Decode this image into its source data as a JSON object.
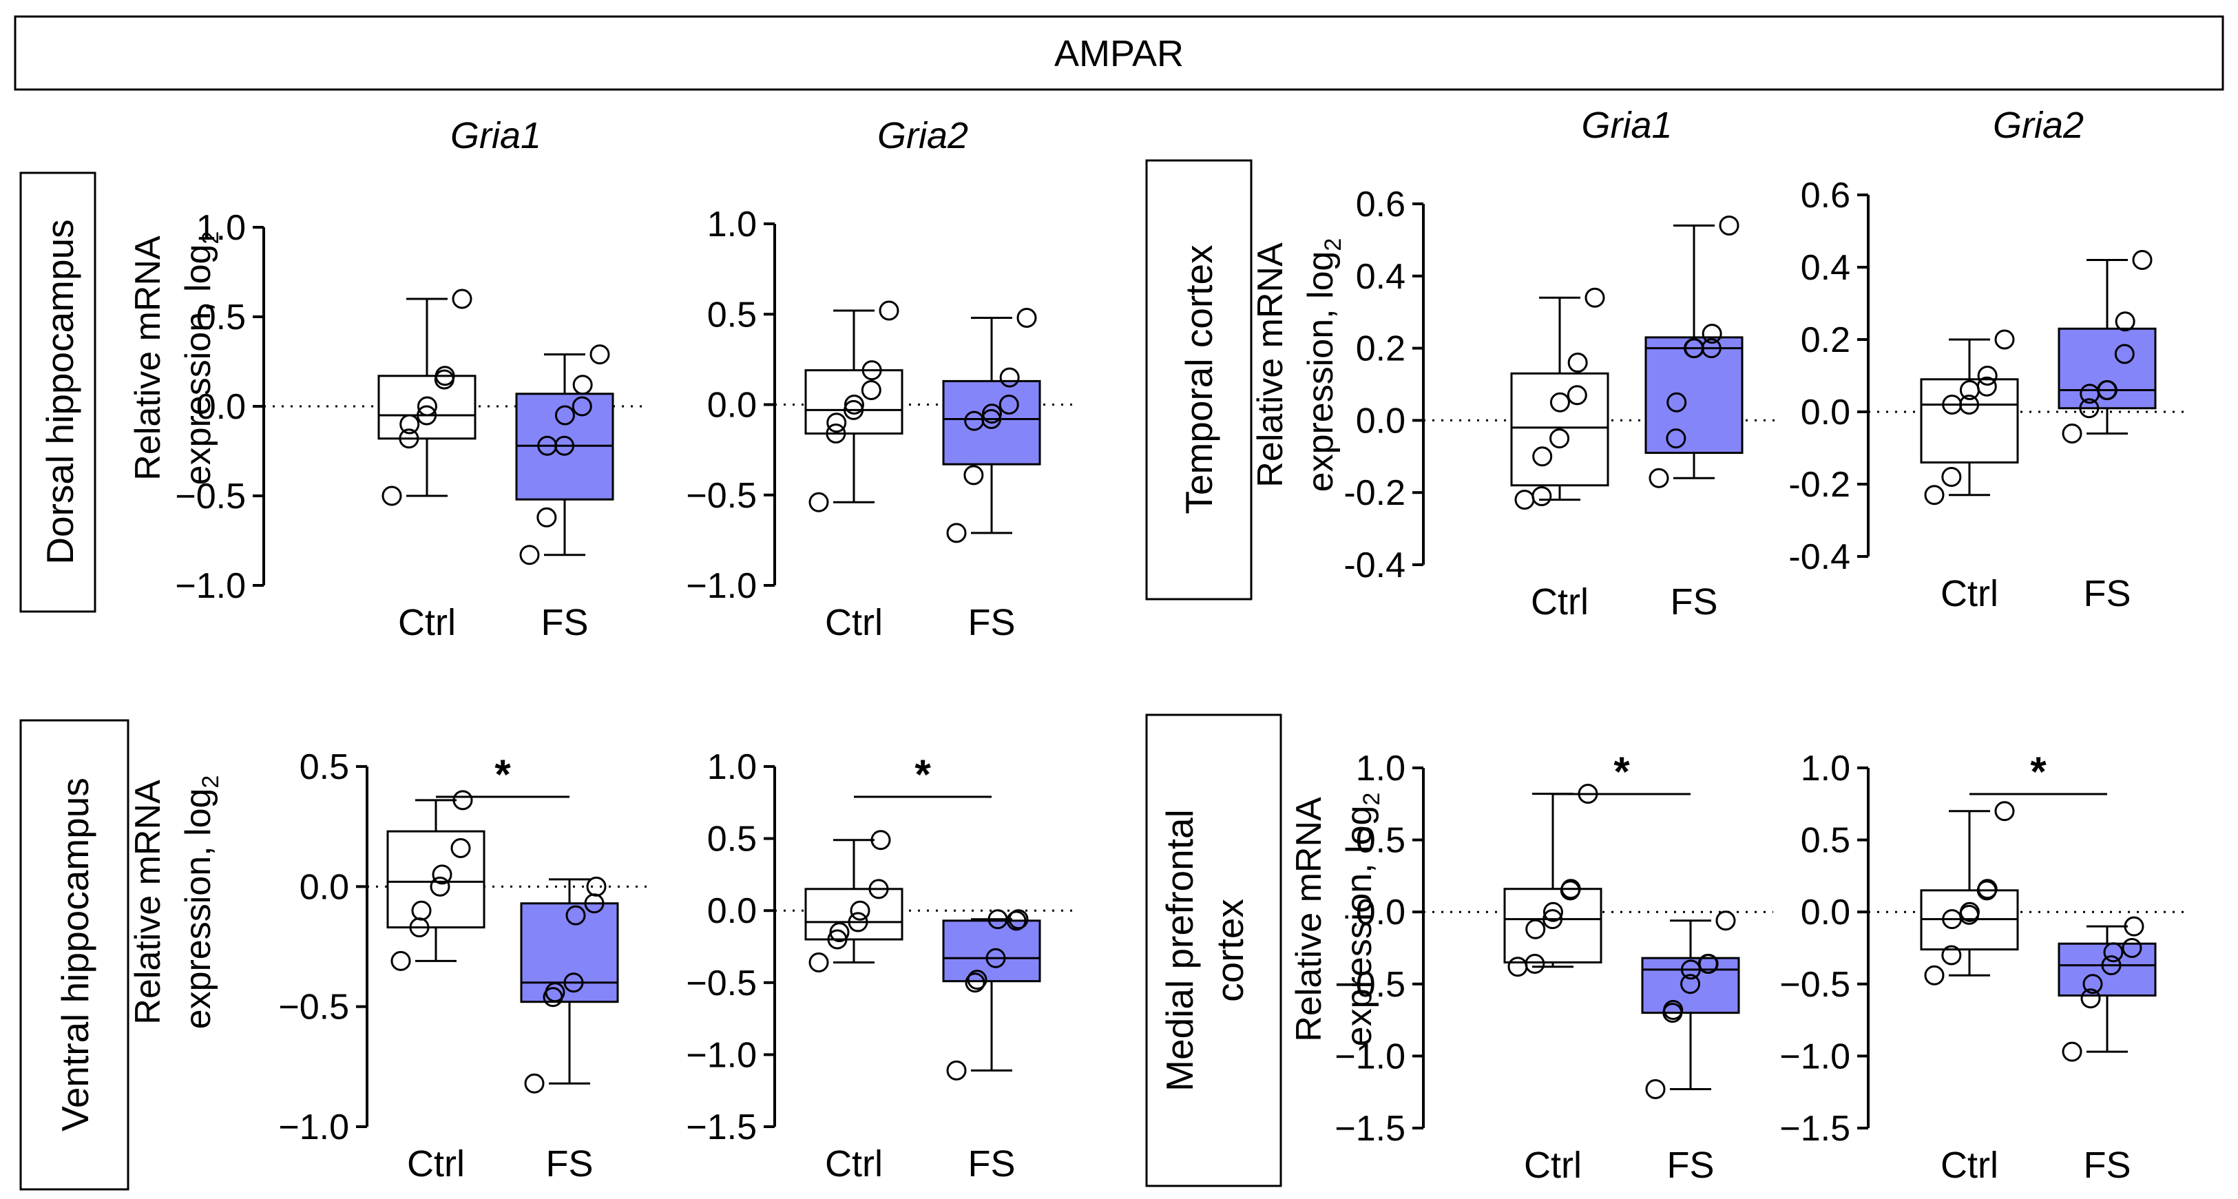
{
  "header": {
    "title": "AMPAR"
  },
  "colors": {
    "ctrl_fill": "#ffffff",
    "fs_fill": "#8585fa",
    "stroke": "#000000"
  },
  "regions": {
    "dorsal": "Dorsal hippocampus",
    "ventral": "Ventral hippocampus",
    "temporal": "Temporal cortex",
    "medial_line1": "Medial prefrontal",
    "medial_line2": "cortex"
  },
  "ylabel": {
    "line1": "Relative mRNA",
    "line2": "expression, log",
    "sub": "2"
  },
  "chart_data": [
    {
      "id": "dh-gria1",
      "type": "box",
      "title": "Gria1",
      "region": "Dorsal hippocampus",
      "categories": [
        "Ctrl",
        "FS"
      ],
      "ylim": [
        -1.0,
        1.0
      ],
      "ticks": [
        -1.0,
        -0.5,
        0.0,
        0.5,
        1.0
      ],
      "tick_labels": [
        "−1.0",
        "−0.5",
        "0.0",
        "0.5",
        "1.0"
      ],
      "significance": "",
      "series": [
        {
          "name": "Ctrl",
          "min": -0.5,
          "q1": -0.18,
          "median": -0.05,
          "q3": 0.17,
          "max": 0.6,
          "points": [
            -0.5,
            -0.18,
            -0.1,
            -0.05,
            0.0,
            0.15,
            0.17,
            0.6
          ]
        },
        {
          "name": "FS",
          "min": -0.83,
          "q1": -0.52,
          "median": -0.22,
          "q3": 0.07,
          "max": 0.29,
          "points": [
            -0.83,
            -0.62,
            -0.22,
            -0.22,
            -0.05,
            0.0,
            0.12,
            0.29
          ]
        }
      ]
    },
    {
      "id": "dh-gria2",
      "type": "box",
      "title": "Gria2",
      "region": "Dorsal hippocampus",
      "categories": [
        "Ctrl",
        "FS"
      ],
      "ylim": [
        -1.0,
        1.0
      ],
      "ticks": [
        -1.0,
        -0.5,
        0.0,
        0.5,
        1.0
      ],
      "tick_labels": [
        "−1.0",
        "−0.5",
        "0.0",
        "0.5",
        "1.0"
      ],
      "significance": "",
      "series": [
        {
          "name": "Ctrl",
          "min": -0.54,
          "q1": -0.16,
          "median": -0.03,
          "q3": 0.19,
          "max": 0.52,
          "points": [
            -0.54,
            -0.16,
            -0.1,
            -0.03,
            0.0,
            0.08,
            0.19,
            0.52
          ]
        },
        {
          "name": "FS",
          "min": -0.71,
          "q1": -0.33,
          "median": -0.08,
          "q3": 0.13,
          "max": 0.48,
          "points": [
            -0.71,
            -0.39,
            -0.09,
            -0.08,
            -0.05,
            0.0,
            0.15,
            0.48
          ]
        }
      ]
    },
    {
      "id": "vh-gria1",
      "type": "box",
      "title": "",
      "region": "Ventral hippocampus",
      "categories": [
        "Ctrl",
        "FS"
      ],
      "ylim": [
        -1.0,
        0.5
      ],
      "ticks": [
        -1.0,
        -0.5,
        0.0,
        0.5
      ],
      "tick_labels": [
        "−1.0",
        "−0.5",
        "0.0",
        "0.5"
      ],
      "significance": "*",
      "series": [
        {
          "name": "Ctrl",
          "min": -0.31,
          "q1": -0.17,
          "median": 0.02,
          "q3": 0.23,
          "max": 0.36,
          "points": [
            -0.31,
            -0.17,
            -0.1,
            0.0,
            0.05,
            0.16,
            0.36
          ]
        },
        {
          "name": "FS",
          "min": -0.82,
          "q1": -0.48,
          "median": -0.4,
          "q3": -0.07,
          "max": 0.03,
          "points": [
            -0.82,
            -0.46,
            -0.44,
            -0.4,
            -0.12,
            -0.07,
            0.0
          ]
        }
      ]
    },
    {
      "id": "vh-gria2",
      "type": "box",
      "title": "",
      "region": "Ventral hippocampus",
      "categories": [
        "Ctrl",
        "FS"
      ],
      "ylim": [
        -1.5,
        1.0
      ],
      "ticks": [
        -1.5,
        -1.0,
        -0.5,
        0.0,
        0.5,
        1.0
      ],
      "tick_labels": [
        "−1.5",
        "−1.0",
        "−0.5",
        "0.0",
        "0.5",
        "1.0"
      ],
      "significance": "*",
      "series": [
        {
          "name": "Ctrl",
          "min": -0.36,
          "q1": -0.2,
          "median": -0.08,
          "q3": 0.15,
          "max": 0.49,
          "points": [
            -0.36,
            -0.2,
            -0.15,
            -0.08,
            0.0,
            0.15,
            0.49
          ]
        },
        {
          "name": "FS",
          "min": -1.11,
          "q1": -0.49,
          "median": -0.33,
          "q3": -0.07,
          "max": -0.06,
          "points": [
            -1.11,
            -0.5,
            -0.48,
            -0.33,
            -0.06,
            -0.07,
            -0.06
          ]
        }
      ]
    },
    {
      "id": "tc-gria1",
      "type": "box",
      "title": "Gria1",
      "region": "Temporal cortex",
      "categories": [
        "Ctrl",
        "FS"
      ],
      "ylim": [
        -0.4,
        0.6
      ],
      "ticks": [
        -0.4,
        -0.2,
        0.0,
        0.2,
        0.4,
        0.6
      ],
      "tick_labels": [
        "-0.4",
        "-0.2",
        "0.0",
        "0.2",
        "0.4",
        "0.6"
      ],
      "significance": "",
      "series": [
        {
          "name": "Ctrl",
          "min": -0.22,
          "q1": -0.18,
          "median": -0.02,
          "q3": 0.13,
          "max": 0.34,
          "points": [
            -0.22,
            -0.21,
            -0.1,
            -0.05,
            0.05,
            0.07,
            0.16,
            0.34
          ]
        },
        {
          "name": "FS",
          "min": -0.16,
          "q1": -0.09,
          "median": 0.2,
          "q3": 0.23,
          "max": 0.54,
          "points": [
            -0.16,
            -0.05,
            0.05,
            0.2,
            0.2,
            0.2,
            0.24,
            0.54
          ]
        }
      ]
    },
    {
      "id": "tc-gria2",
      "type": "box",
      "title": "Gria2",
      "region": "Temporal cortex",
      "categories": [
        "Ctrl",
        "FS"
      ],
      "ylim": [
        -0.4,
        0.6
      ],
      "ticks": [
        -0.4,
        -0.2,
        0.0,
        0.2,
        0.4,
        0.6
      ],
      "tick_labels": [
        "-0.4",
        "-0.2",
        "0.0",
        "0.2",
        "0.4",
        "0.6"
      ],
      "significance": "",
      "series": [
        {
          "name": "Ctrl",
          "min": -0.23,
          "q1": -0.14,
          "median": 0.02,
          "q3": 0.09,
          "max": 0.2,
          "points": [
            -0.23,
            -0.18,
            0.02,
            0.02,
            0.06,
            0.07,
            0.1,
            0.2
          ]
        },
        {
          "name": "FS",
          "min": -0.06,
          "q1": 0.01,
          "median": 0.06,
          "q3": 0.23,
          "max": 0.42,
          "points": [
            -0.06,
            0.01,
            0.05,
            0.06,
            0.06,
            0.16,
            0.25,
            0.42
          ]
        }
      ]
    },
    {
      "id": "mpfc-gria1",
      "type": "box",
      "title": "",
      "region": "Medial prefrontal cortex",
      "categories": [
        "Ctrl",
        "FS"
      ],
      "ylim": [
        -1.5,
        1.0
      ],
      "ticks": [
        -1.5,
        -1.0,
        -0.5,
        0.0,
        0.5,
        1.0
      ],
      "tick_labels": [
        "−1.5",
        "−1.0",
        "−0.5",
        "0.0",
        "0.5",
        "1.0"
      ],
      "significance": "*",
      "series": [
        {
          "name": "Ctrl",
          "min": -0.38,
          "q1": -0.35,
          "median": -0.05,
          "q3": 0.16,
          "max": 0.82,
          "points": [
            -0.38,
            -0.36,
            -0.12,
            -0.05,
            0.0,
            0.15,
            0.16,
            0.82
          ]
        },
        {
          "name": "FS",
          "min": -1.23,
          "q1": -0.7,
          "median": -0.4,
          "q3": -0.32,
          "max": -0.06,
          "points": [
            -1.23,
            -0.7,
            -0.68,
            -0.5,
            -0.4,
            -0.36,
            -0.36,
            -0.06
          ]
        }
      ]
    },
    {
      "id": "mpfc-gria2",
      "type": "box",
      "title": "",
      "region": "Medial prefrontal cortex",
      "categories": [
        "Ctrl",
        "FS"
      ],
      "ylim": [
        -1.5,
        1.0
      ],
      "ticks": [
        -1.5,
        -1.0,
        -0.5,
        0.0,
        0.5,
        1.0
      ],
      "tick_labels": [
        "−1.5",
        "−1.0",
        "−0.5",
        "0.0",
        "0.5",
        "1.0"
      ],
      "significance": "*",
      "series": [
        {
          "name": "Ctrl",
          "min": -0.44,
          "q1": -0.26,
          "median": -0.05,
          "q3": 0.15,
          "max": 0.7,
          "points": [
            -0.44,
            -0.3,
            -0.05,
            -0.02,
            0.0,
            0.15,
            0.16,
            0.7
          ]
        },
        {
          "name": "FS",
          "min": -0.97,
          "q1": -0.58,
          "median": -0.37,
          "q3": -0.22,
          "max": -0.1,
          "points": [
            -0.97,
            -0.6,
            -0.5,
            -0.37,
            -0.28,
            -0.25,
            -0.1
          ]
        }
      ]
    }
  ]
}
